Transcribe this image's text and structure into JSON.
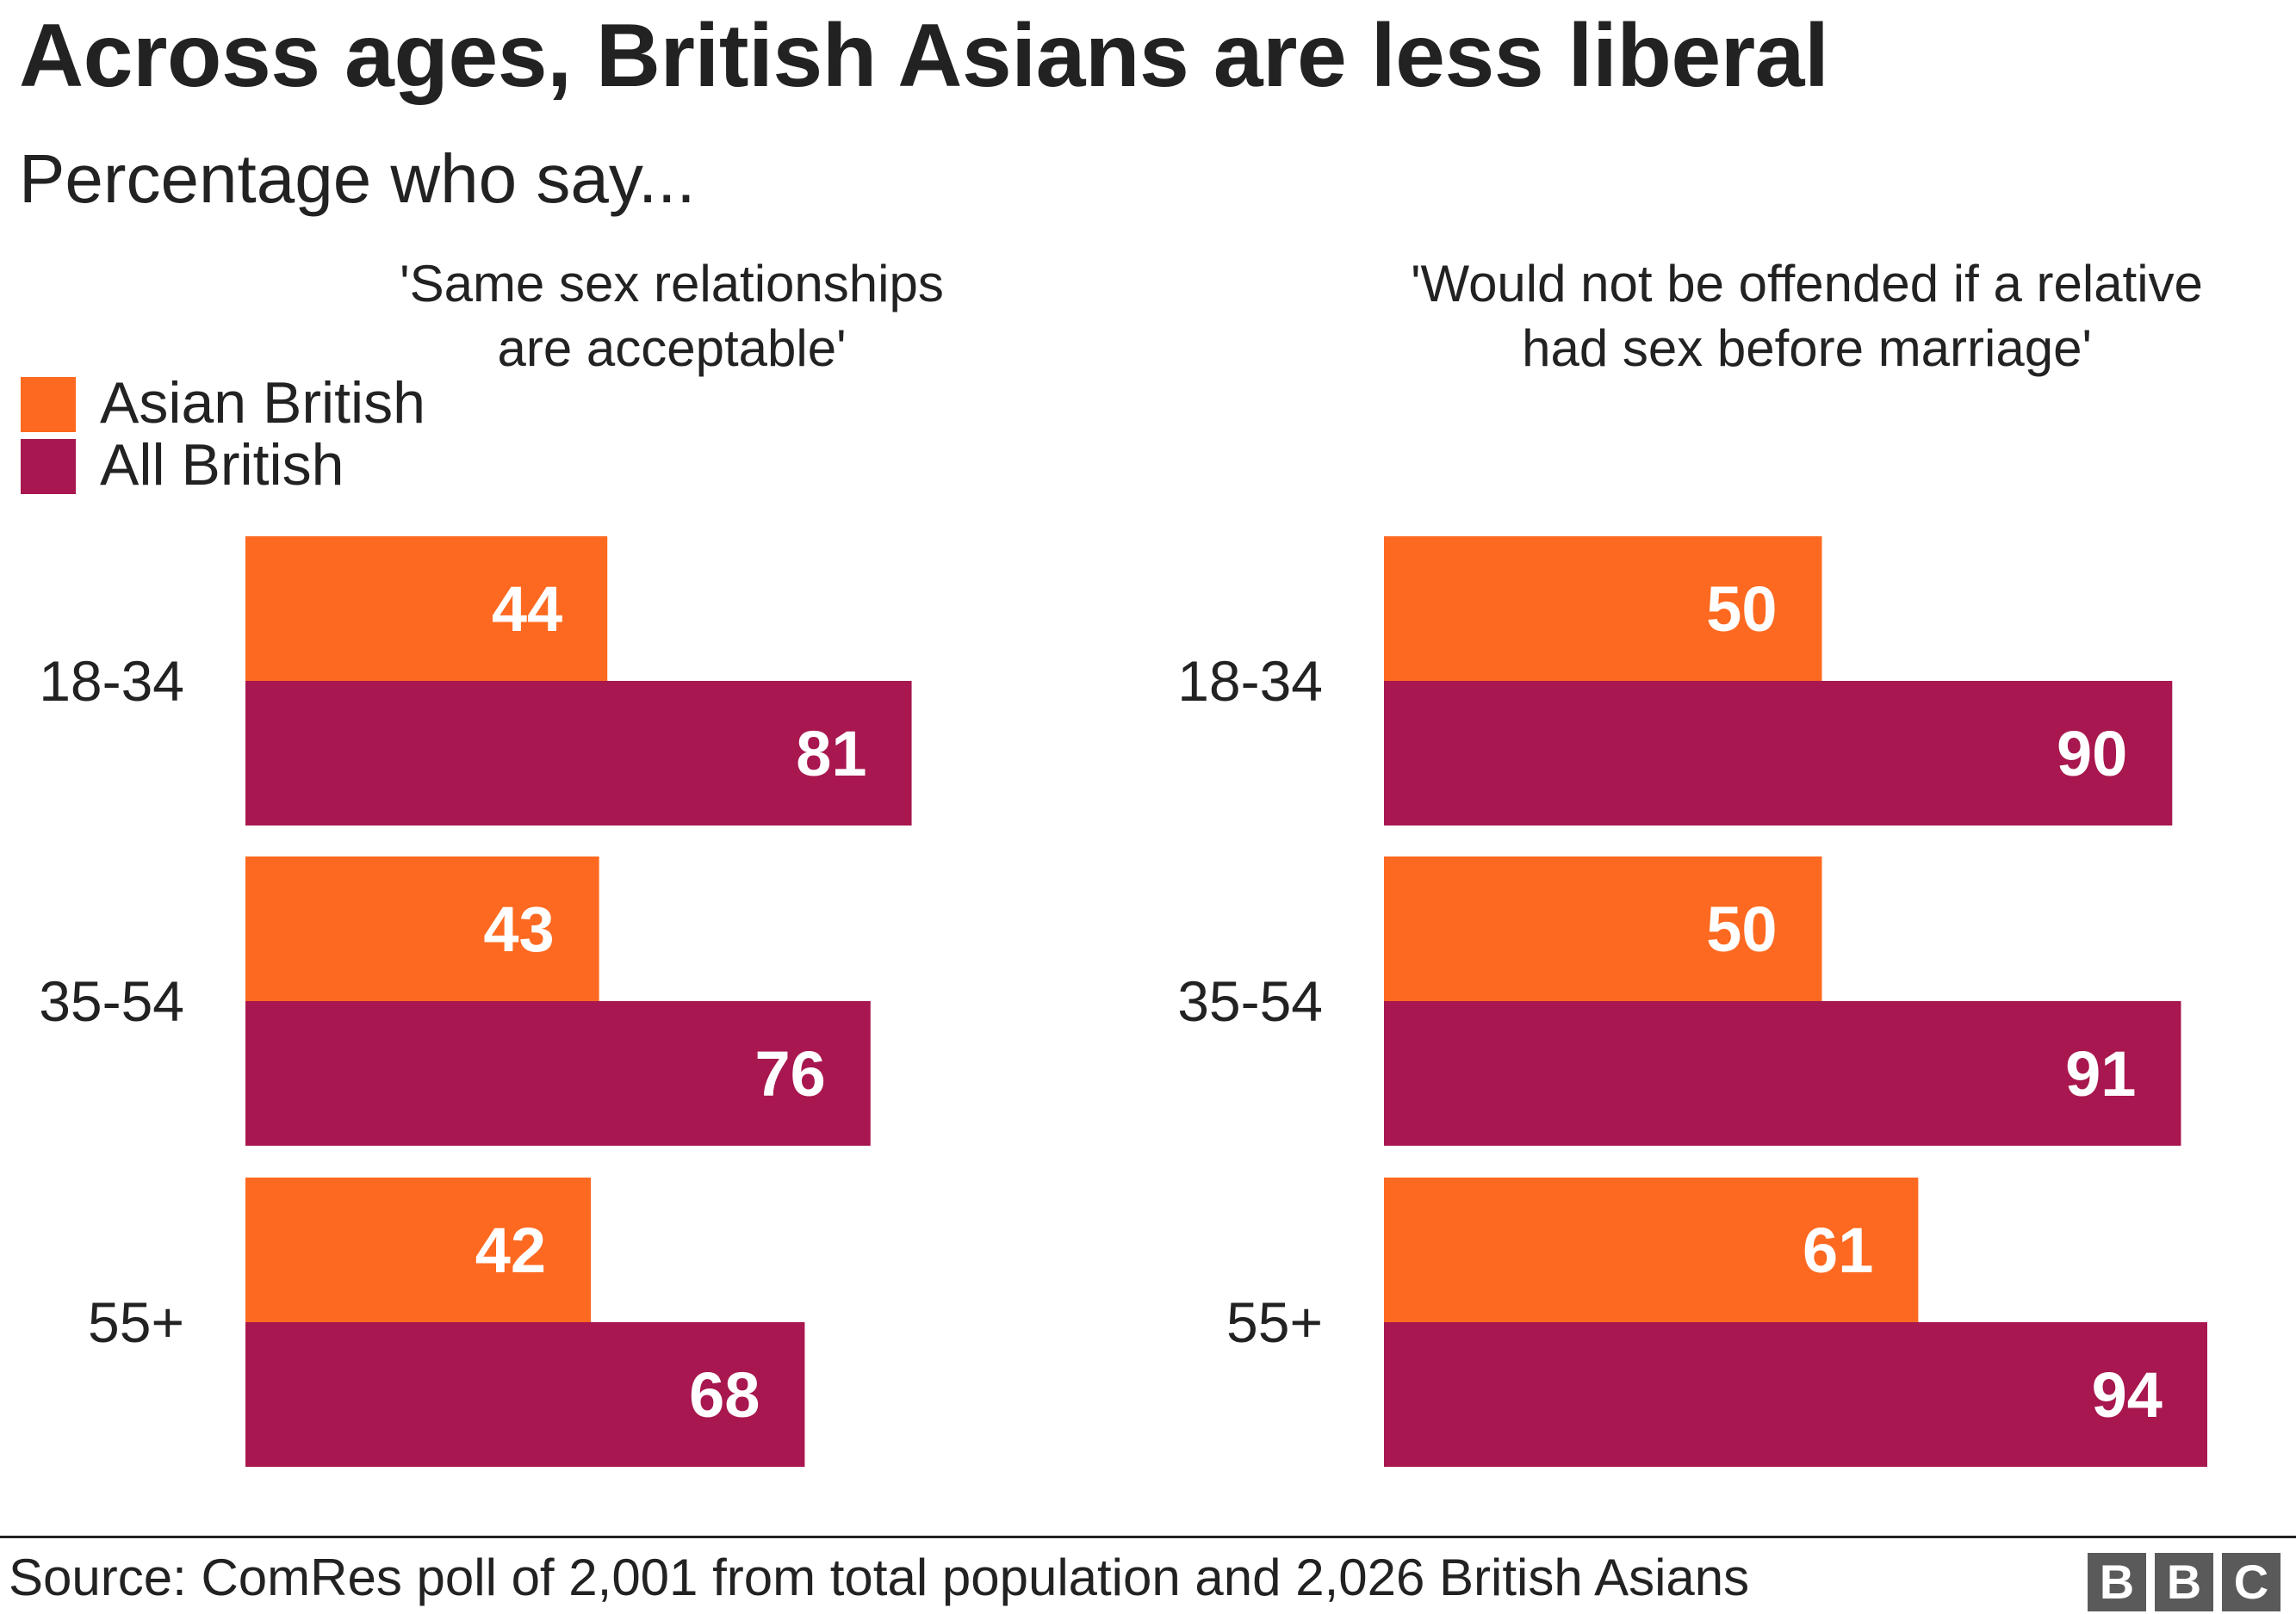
{
  "title": "Across ages, British Asians are less liberal",
  "subtitle": "Percentage who say...",
  "legend": [
    {
      "label": "Asian British",
      "color": "#fd6920"
    },
    {
      "label": "All British",
      "color": "#a8174f"
    }
  ],
  "source": "Source: ComRes poll of 2,001 from total population and 2,026 British Asians",
  "logo": [
    "B",
    "B",
    "C"
  ],
  "chart_data": [
    {
      "type": "bar",
      "orientation": "horizontal",
      "title": "'Same sex relationships are acceptable'",
      "title_lines": [
        "'Same sex relationships",
        "are acceptable'"
      ],
      "categories": [
        "18-34",
        "35-54",
        "55+"
      ],
      "series": [
        {
          "name": "Asian British",
          "color": "#fd6920",
          "values": [
            44,
            43,
            42
          ]
        },
        {
          "name": "All British",
          "color": "#a8174f",
          "values": [
            81,
            76,
            68
          ]
        }
      ],
      "xlim": [
        0,
        100
      ],
      "grid": false,
      "legend": "top-left"
    },
    {
      "type": "bar",
      "orientation": "horizontal",
      "title": "'Would not be offended if a relative had sex before marriage'",
      "title_lines": [
        "'Would not be offended if a relative",
        "had sex before marriage'"
      ],
      "categories": [
        "18-34",
        "35-54",
        "55+"
      ],
      "series": [
        {
          "name": "Asian British",
          "color": "#fd6920",
          "values": [
            50,
            50,
            61
          ]
        },
        {
          "name": "All British",
          "color": "#a8174f",
          "values": [
            90,
            91,
            94
          ]
        }
      ],
      "xlim": [
        0,
        100
      ],
      "grid": false,
      "legend": "top-left"
    }
  ]
}
